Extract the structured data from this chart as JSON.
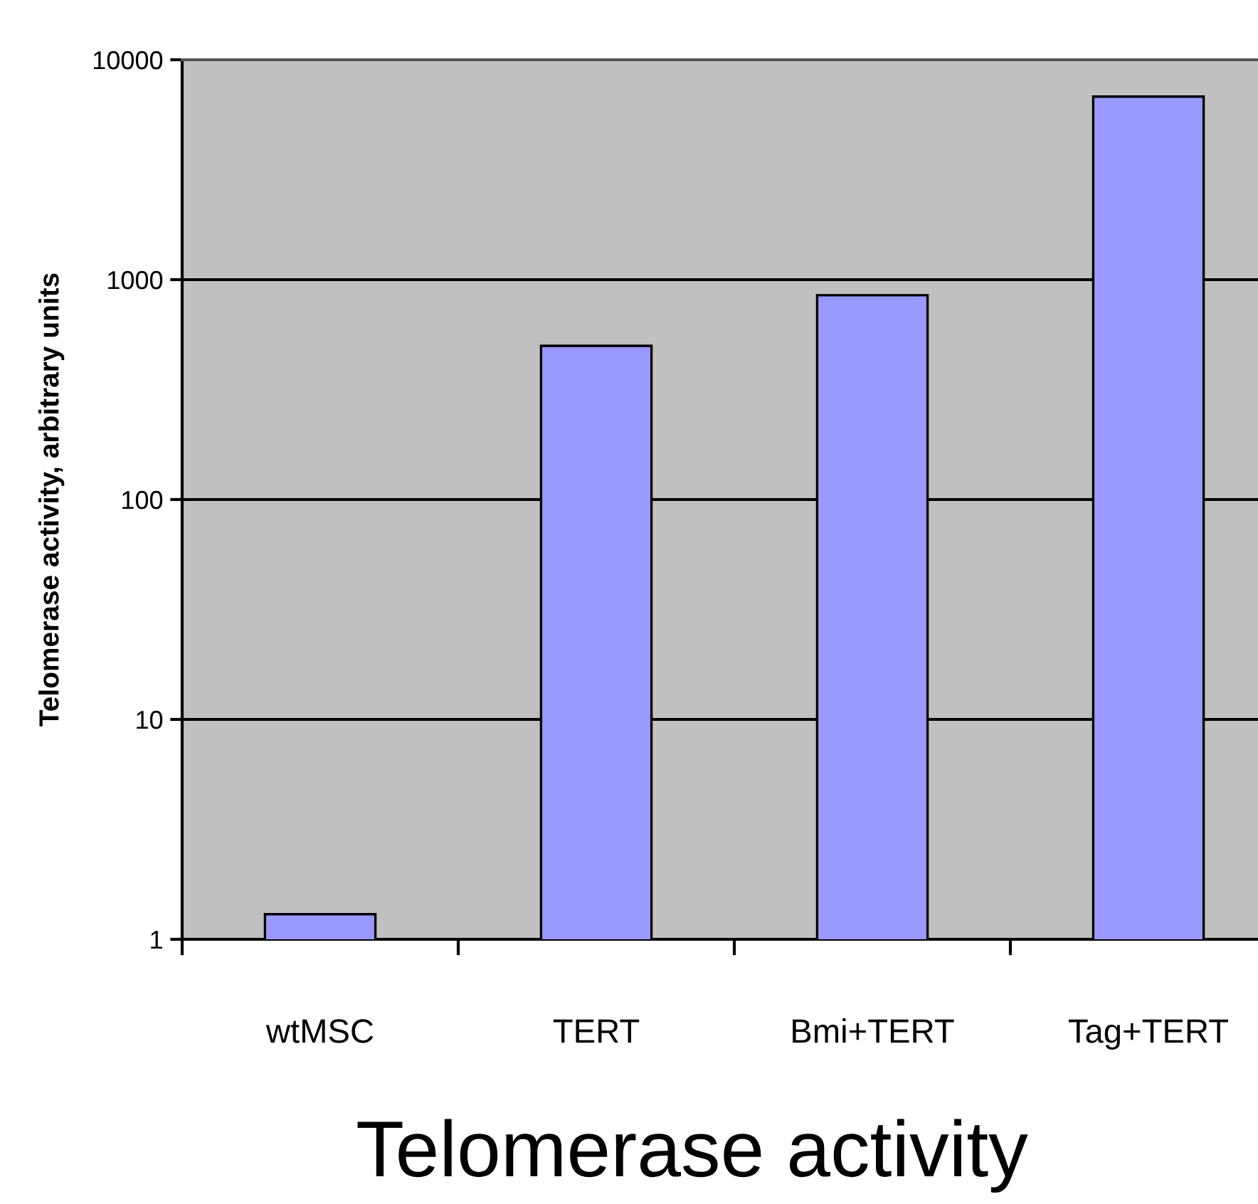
{
  "chart_data": {
    "type": "bar",
    "title": "Telomerase activity",
    "ylabel": "Telomerase activity, arbitrary units",
    "categories": [
      "wtMSC",
      "TERT",
      "Bmi+TERT",
      "Tag+TERT"
    ],
    "values": [
      1.3,
      500,
      850,
      6800
    ],
    "color": "#9999ff",
    "log": "y",
    "ylim": [
      1,
      10000
    ],
    "yticks": [
      1,
      10,
      100,
      1000,
      10000
    ],
    "grid": "y",
    "legend": false
  }
}
